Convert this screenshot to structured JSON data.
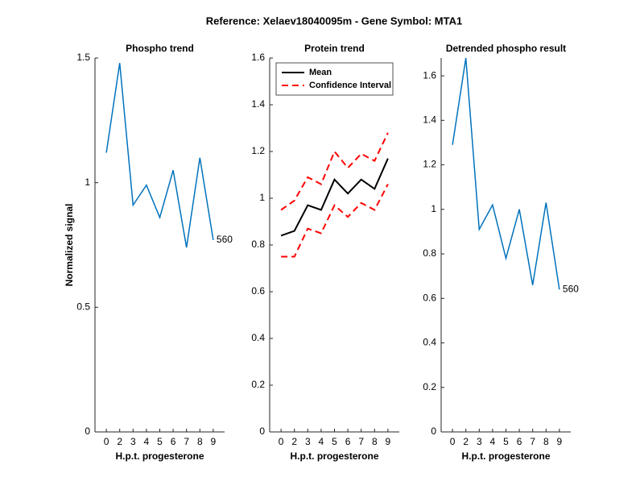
{
  "title": "Reference:  Xelaev18040095m - Gene Symbol:  MTA1",
  "chart_data": [
    {
      "type": "line",
      "title": "Phospho trend",
      "xlabel": "H.p.t. progesterone",
      "ylabel": "Normalized signal",
      "categories": [
        "0",
        "2",
        "3",
        "4",
        "5",
        "6",
        "7",
        "8",
        "9"
      ],
      "series": [
        {
          "color": "#0072bd",
          "values": [
            1.12,
            1.48,
            0.91,
            0.99,
            0.86,
            1.05,
            0.74,
            1.1,
            0.77
          ]
        }
      ],
      "annotation": "560",
      "ylim": [
        0,
        1.5
      ],
      "yticks": [
        0,
        0.5,
        1,
        1.5
      ]
    },
    {
      "type": "line",
      "title": "Protein trend",
      "xlabel": "H.p.t. progesterone",
      "categories": [
        "0",
        "2",
        "3",
        "4",
        "5",
        "6",
        "7",
        "8",
        "9"
      ],
      "series": [
        {
          "name": "Mean",
          "color": "#000000",
          "values": [
            0.84,
            0.86,
            0.97,
            0.95,
            1.08,
            1.02,
            1.08,
            1.04,
            1.17
          ]
        },
        {
          "name": "Confidence Interval",
          "color": "#ff0000",
          "dash": true,
          "values": [
            0.95,
            0.99,
            1.09,
            1.06,
            1.2,
            1.13,
            1.19,
            1.16,
            1.28
          ],
          "lower": [
            0.75,
            0.75,
            0.87,
            0.85,
            0.97,
            0.92,
            0.98,
            0.95,
            1.06
          ]
        }
      ],
      "legend": "upper-left",
      "ylim": [
        0,
        1.6
      ],
      "yticks": [
        0,
        0.2,
        0.4,
        0.6,
        0.8,
        1,
        1.2,
        1.4,
        1.6
      ]
    },
    {
      "type": "line",
      "title": "Detrended phospho result",
      "xlabel": "H.p.t. progesterone",
      "categories": [
        "0",
        "2",
        "3",
        "4",
        "5",
        "6",
        "7",
        "8",
        "9"
      ],
      "series": [
        {
          "color": "#0072bd",
          "values": [
            1.29,
            1.68,
            0.91,
            1.02,
            0.78,
            1.0,
            0.66,
            1.03,
            0.64
          ]
        }
      ],
      "annotation": "560",
      "ylim": [
        0,
        1.68
      ],
      "yticks": [
        0,
        0.2,
        0.4,
        0.6,
        0.8,
        1,
        1.2,
        1.4,
        1.6
      ]
    }
  ]
}
